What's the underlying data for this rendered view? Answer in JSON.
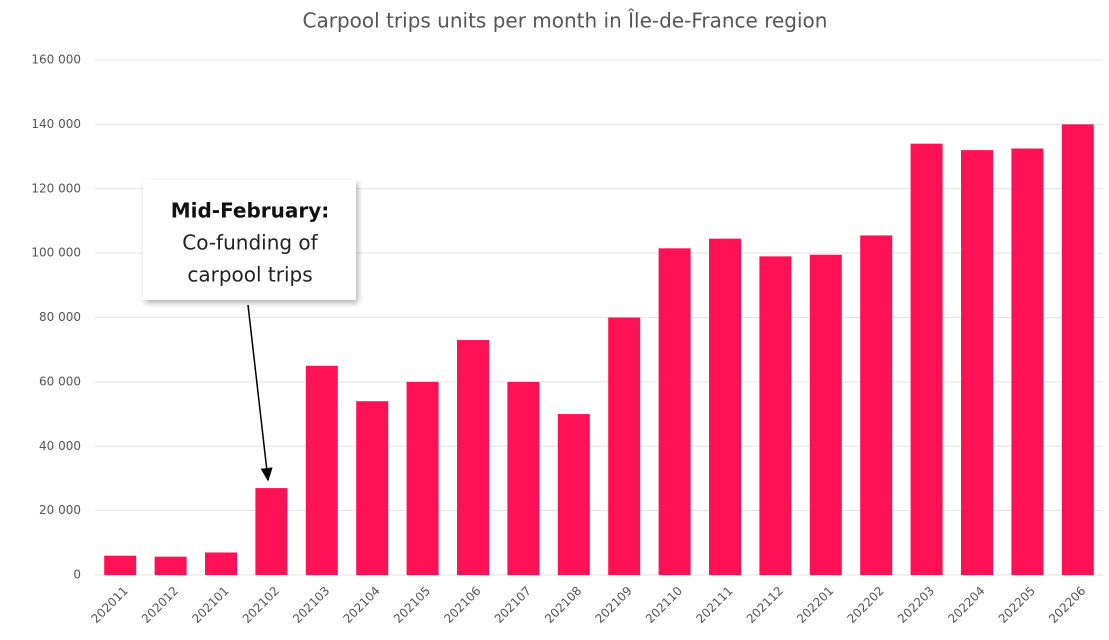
{
  "chart_data": {
    "type": "bar",
    "title": "Carpool trips units per month in Île-de-France region",
    "categories": [
      "202011",
      "202012",
      "202101",
      "202102",
      "202103",
      "202104",
      "202105",
      "202106",
      "202107",
      "202108",
      "202109",
      "202110",
      "202111",
      "202112",
      "202201",
      "202202",
      "202203",
      "202204",
      "202205",
      "202206"
    ],
    "values": [
      6000,
      5700,
      7000,
      27000,
      65000,
      54000,
      60000,
      73000,
      60000,
      50000,
      80000,
      101500,
      104500,
      99000,
      99500,
      105500,
      134000,
      132000,
      132500,
      140000
    ],
    "color": "#ff1155",
    "ylim": [
      0,
      160000
    ],
    "yticks": [
      0,
      {
        "value": 20000,
        "label": "20 000"
      },
      {
        "value": 40000,
        "label": "40 000"
      },
      {
        "value": 60000,
        "label": "60 000"
      },
      {
        "value": 80000,
        "label": "80 000"
      },
      {
        "value": 100000,
        "label": "100 000"
      },
      {
        "value": 120000,
        "label": "120 000"
      },
      {
        "value": 140000,
        "label": "140 000"
      },
      {
        "value": 160000,
        "label": "160 000"
      }
    ],
    "grid": true,
    "annotation": {
      "title": "Mid-February:",
      "lines": [
        "Co-funding of",
        "carpool trips"
      ]
    }
  }
}
